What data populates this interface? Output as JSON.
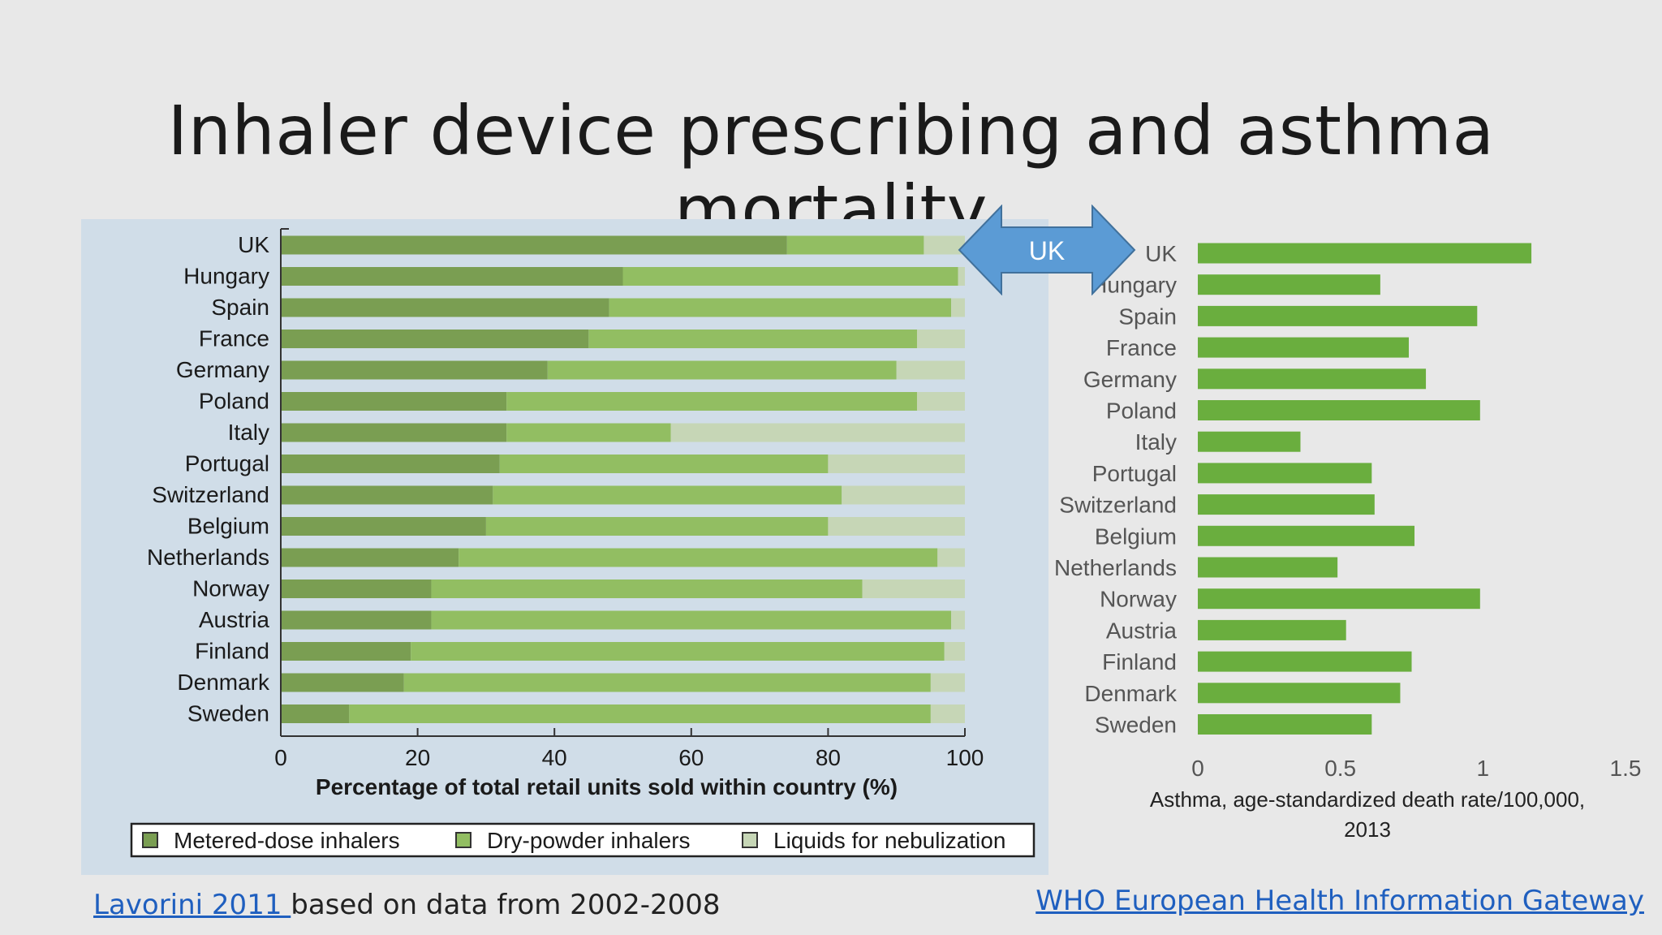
{
  "slide": {
    "title": "Inhaler device prescribing and asthma mortality",
    "left_source_link": "Lavorini 2011 ",
    "left_source_text": "based on data from 2002-2008",
    "right_source_link": "WHO European Health Information Gateway",
    "uk_arrow_label": "UK"
  },
  "colors": {
    "metered": "#7a9e52",
    "dry": "#92be62",
    "liquid": "#c6d6b6",
    "who_bar": "#6aae3e",
    "arrow": "#5b9bd5"
  },
  "chart_data": [
    {
      "type": "bar",
      "orientation": "horizontal",
      "stacked": true,
      "categories": [
        "UK",
        "Hungary",
        "Spain",
        "France",
        "Germany",
        "Poland",
        "Italy",
        "Portugal",
        "Switzerland",
        "Belgium",
        "Netherlands",
        "Norway",
        "Austria",
        "Finland",
        "Denmark",
        "Sweden"
      ],
      "series": [
        {
          "name": "Metered-dose inhalers",
          "values": [
            74,
            50,
            48,
            45,
            39,
            33,
            33,
            32,
            31,
            30,
            26,
            22,
            22,
            19,
            18,
            10
          ]
        },
        {
          "name": "Dry-powder inhalers",
          "values": [
            20,
            49,
            50,
            48,
            51,
            60,
            24,
            48,
            51,
            50,
            70,
            63,
            76,
            78,
            77,
            85
          ]
        },
        {
          "name": "Liquids for nebulization",
          "values": [
            6,
            1,
            2,
            7,
            10,
            7,
            43,
            20,
            18,
            20,
            4,
            15,
            2,
            3,
            5,
            5
          ]
        }
      ],
      "xlabel": "Percentage of total retail units sold within country (%)",
      "xlim": [
        0,
        100
      ],
      "xticks": [
        "0",
        "20",
        "40",
        "60",
        "80",
        "100"
      ],
      "legend": "bottom"
    },
    {
      "type": "bar",
      "orientation": "horizontal",
      "categories": [
        "UK",
        "Hungary",
        "Spain",
        "France",
        "Germany",
        "Poland",
        "Italy",
        "Portugal",
        "Switzerland",
        "Belgium",
        "Netherlands",
        "Norway",
        "Austria",
        "Finland",
        "Denmark",
        "Sweden"
      ],
      "values": [
        1.17,
        0.64,
        0.98,
        0.74,
        0.8,
        0.99,
        0.36,
        0.61,
        0.62,
        0.76,
        0.49,
        0.99,
        0.52,
        0.75,
        0.71,
        0.61
      ],
      "xlabel": "Asthma, age-standardized death rate/100,000, 2013",
      "xlim": [
        0,
        1.5
      ],
      "xticks": [
        "0",
        "0.5",
        "1",
        "1.5"
      ]
    }
  ]
}
